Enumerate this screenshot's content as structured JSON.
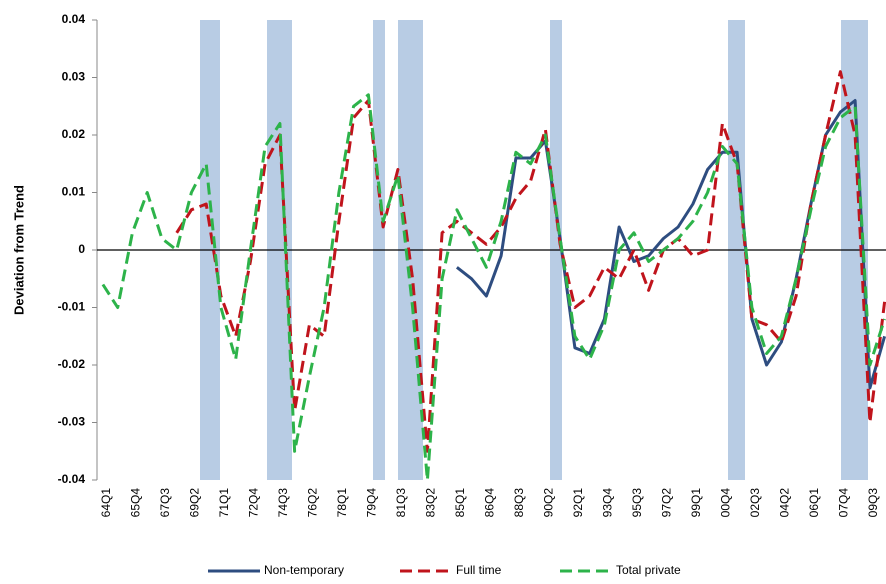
{
  "chart_data": {
    "type": "line",
    "y_label": "Deviation from Trend",
    "categories": [
      "64Q1",
      null,
      "65Q4",
      null,
      "67Q3",
      null,
      "69Q2",
      null,
      "71Q1",
      null,
      "72Q4",
      null,
      "74Q3",
      null,
      "76Q2",
      null,
      "78Q1",
      null,
      "79Q4",
      null,
      "81Q3",
      null,
      "83Q2",
      null,
      "85Q1",
      null,
      "86Q4",
      null,
      "88Q3",
      null,
      "90Q2",
      null,
      "92Q1",
      null,
      "93Q4",
      null,
      "95Q3",
      null,
      "97Q2",
      null,
      "99Q1",
      null,
      "00Q4",
      null,
      "02Q3",
      null,
      "04Q2",
      null,
      "06Q1",
      null,
      "07Q4",
      null,
      "09Q3",
      null
    ],
    "series": [
      {
        "name": "Non-temporary",
        "color": "#2e4d80",
        "dash": false,
        "values": [
          null,
          null,
          null,
          null,
          null,
          null,
          null,
          null,
          null,
          null,
          null,
          null,
          null,
          null,
          null,
          null,
          null,
          null,
          null,
          null,
          null,
          null,
          null,
          null,
          -0.003,
          -0.005,
          -0.008,
          -0.001,
          0.016,
          0.016,
          0.019,
          0.002,
          -0.017,
          -0.018,
          -0.012,
          0.004,
          -0.002,
          -0.001,
          0.002,
          0.004,
          0.008,
          0.014,
          0.017,
          0.017,
          -0.012,
          -0.02,
          -0.016,
          -0.005,
          0.008,
          0.02,
          0.024,
          0.026,
          -0.024,
          -0.015
        ]
      },
      {
        "name": "Full time",
        "color": "#c0141c",
        "dash": true,
        "values": [
          null,
          null,
          null,
          null,
          null,
          0.003,
          0.007,
          0.008,
          -0.008,
          -0.015,
          -0.002,
          0.015,
          0.02,
          -0.028,
          -0.013,
          -0.015,
          0.005,
          0.023,
          0.026,
          0.004,
          0.014,
          -0.005,
          -0.035,
          0.003,
          0.005,
          0.003,
          0.001,
          0.004,
          0.009,
          0.012,
          0.021,
          0.001,
          -0.01,
          -0.008,
          -0.003,
          -0.005,
          0.0,
          -0.007,
          0.0,
          0.002,
          -0.001,
          0.0,
          0.022,
          0.015,
          -0.012,
          -0.013,
          -0.016,
          -0.008,
          0.008,
          0.02,
          0.031,
          0.02,
          -0.03,
          -0.009
        ]
      },
      {
        "name": "Total private",
        "color": "#2db34a",
        "dash": true,
        "values": [
          -0.006,
          -0.01,
          0.003,
          0.01,
          0.002,
          0.0,
          0.01,
          0.015,
          -0.01,
          -0.019,
          0.0,
          0.018,
          0.022,
          -0.035,
          -0.022,
          -0.01,
          0.01,
          0.025,
          0.027,
          0.005,
          0.013,
          -0.01,
          -0.04,
          -0.005,
          0.007,
          0.002,
          -0.003,
          0.005,
          0.017,
          0.015,
          0.02,
          0.002,
          -0.015,
          -0.019,
          -0.013,
          0.0,
          0.003,
          -0.002,
          0.0,
          0.002,
          0.005,
          0.01,
          0.018,
          0.015,
          -0.01,
          -0.018,
          -0.015,
          -0.005,
          0.007,
          0.018,
          0.023,
          0.025,
          -0.02,
          -0.012
        ]
      }
    ],
    "ylim": [
      -0.04,
      0.04
    ],
    "yticks": [
      -0.04,
      -0.03,
      -0.02,
      -0.01,
      0,
      0.01,
      0.02,
      0.03,
      0.04
    ],
    "legend": "bottom"
  }
}
